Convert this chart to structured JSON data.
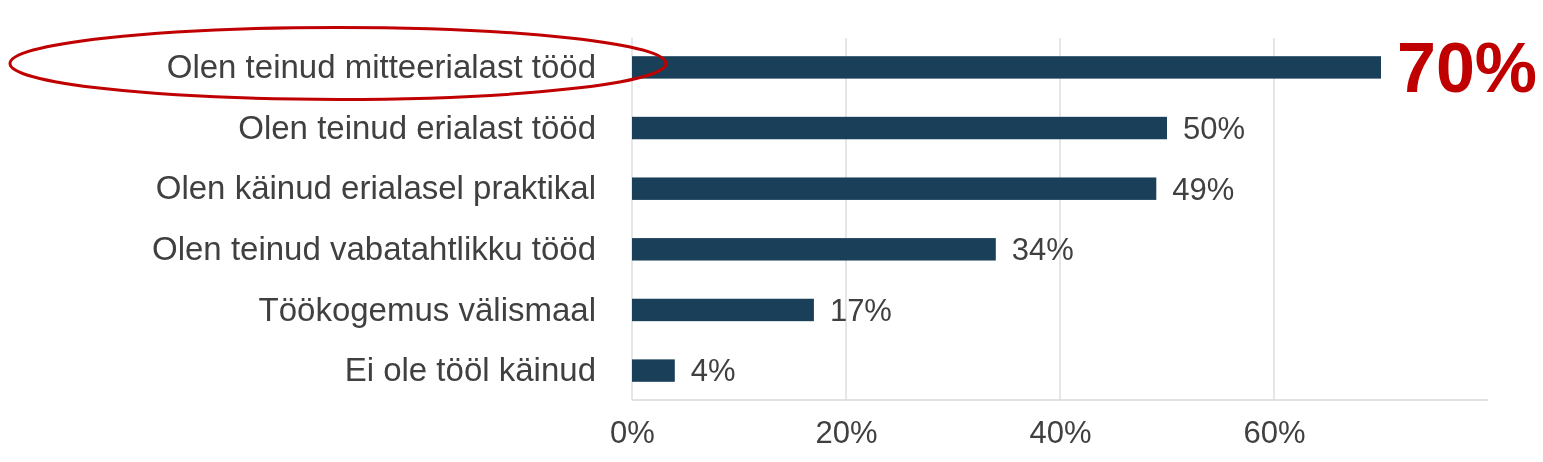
{
  "chart_data": {
    "type": "bar",
    "orientation": "horizontal",
    "categories": [
      "Olen teinud mitteerialast tööd",
      "Olen teinud erialast tööd",
      "Olen käinud erialasel praktikal",
      "Olen teinud vabatahtlikku tööd",
      "Töökogemus välismaal",
      "Ei ole tööl käinud"
    ],
    "values": [
      70,
      50,
      49,
      34,
      17,
      4
    ],
    "value_labels": [
      null,
      "50%",
      "49%",
      "34%",
      "17%",
      "4%"
    ],
    "color": "#1a4059",
    "xlim": [
      0,
      80
    ],
    "xticks": [
      {
        "value": 0,
        "label": "0%"
      },
      {
        "value": 20,
        "label": "20%"
      },
      {
        "value": 40,
        "label": "40%"
      },
      {
        "value": 60,
        "label": "60%"
      }
    ],
    "grid": "x",
    "annotations": [
      {
        "text": "70%",
        "x": 70,
        "y": "Olen teinud mitteerialast tööd"
      }
    ]
  }
}
